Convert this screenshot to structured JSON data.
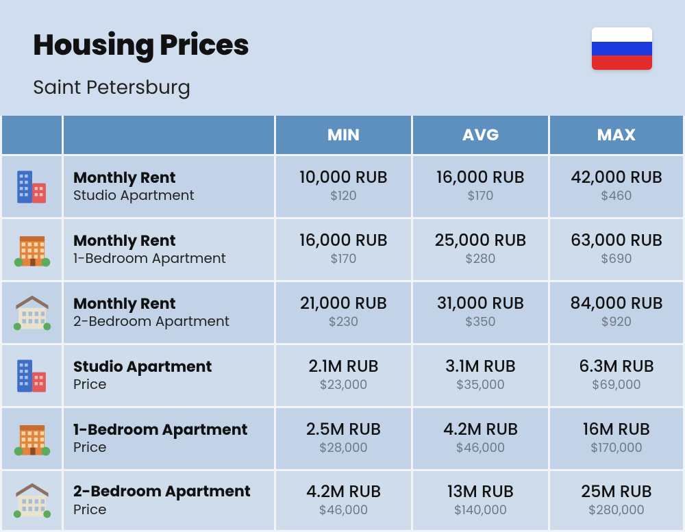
{
  "header": {
    "title": "Housing Prices",
    "subtitle": "Saint Petersburg"
  },
  "flag": {
    "stripes": [
      "#ffffff",
      "#1c3adf",
      "#e22b2b"
    ]
  },
  "table": {
    "type": "table",
    "header_bg": "#5d8fbf",
    "header_text": "#ffffff",
    "row_bg": "#c2d3e7",
    "row_bg_alt": "#cedcec",
    "grid_color": "#f2f4f7",
    "columns": [
      "",
      "",
      "MIN",
      "AVG",
      "MAX"
    ],
    "rows": [
      {
        "icon": "tower",
        "title": "Monthly Rent",
        "sub": "Studio Apartment",
        "min": {
          "main": "10,000 RUB",
          "sub": "$120"
        },
        "avg": {
          "main": "16,000 RUB",
          "sub": "$170"
        },
        "max": {
          "main": "42,000 RUB",
          "sub": "$460"
        }
      },
      {
        "icon": "block",
        "title": "Monthly Rent",
        "sub": "1-Bedroom Apartment",
        "min": {
          "main": "16,000 RUB",
          "sub": "$170"
        },
        "avg": {
          "main": "25,000 RUB",
          "sub": "$280"
        },
        "max": {
          "main": "63,000 RUB",
          "sub": "$690"
        }
      },
      {
        "icon": "house",
        "title": "Monthly Rent",
        "sub": "2-Bedroom Apartment",
        "min": {
          "main": "21,000 RUB",
          "sub": "$230"
        },
        "avg": {
          "main": "31,000 RUB",
          "sub": "$350"
        },
        "max": {
          "main": "84,000 RUB",
          "sub": "$920"
        }
      },
      {
        "icon": "tower",
        "title": "Studio Apartment",
        "sub": "Price",
        "min": {
          "main": "2.1M RUB",
          "sub": "$23,000"
        },
        "avg": {
          "main": "3.1M RUB",
          "sub": "$35,000"
        },
        "max": {
          "main": "6.3M RUB",
          "sub": "$69,000"
        }
      },
      {
        "icon": "block",
        "title": "1-Bedroom Apartment",
        "sub": "Price",
        "min": {
          "main": "2.5M RUB",
          "sub": "$28,000"
        },
        "avg": {
          "main": "4.2M RUB",
          "sub": "$46,000"
        },
        "max": {
          "main": "16M RUB",
          "sub": "$170,000"
        }
      },
      {
        "icon": "house",
        "title": "2-Bedroom Apartment",
        "sub": "Price",
        "min": {
          "main": "4.2M RUB",
          "sub": "$46,000"
        },
        "avg": {
          "main": "13M RUB",
          "sub": "$140,000"
        },
        "max": {
          "main": "25M RUB",
          "sub": "$280,000"
        }
      }
    ]
  },
  "icons": {
    "tower_colors": {
      "tall": "#3f6ec7",
      "short": "#e25b5b",
      "windows": "#a8c4f0"
    },
    "block_colors": {
      "body": "#e2833f",
      "windows": "#f7d9a8",
      "bush": "#5caa5c"
    },
    "house_colors": {
      "body": "#e9e2cc",
      "roof": "#8d7060",
      "windows": "#a8bcd6",
      "bush": "#5caa5c"
    }
  }
}
